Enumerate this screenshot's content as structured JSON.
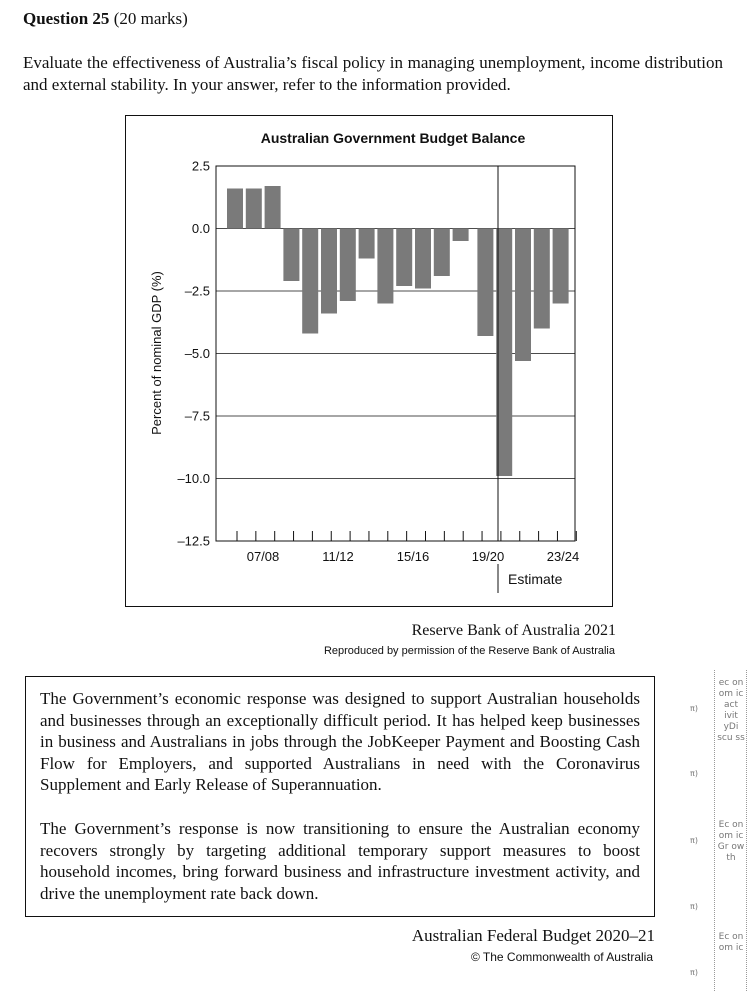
{
  "question": {
    "number_label": "Question 25",
    "marks": "(20 marks)",
    "prompt": "Evaluate the effectiveness of Australia’s fiscal policy in managing unemployment, income distribution and external stability. In your answer, refer to the information provided."
  },
  "chart_data": {
    "type": "bar",
    "title": "Australian Government Budget Balance",
    "ylabel": "Percent of nominal GDP (%)",
    "xlabel": "",
    "ylim": [
      -12.5,
      2.5
    ],
    "yticks": [
      "2.5",
      "0.0",
      "–2.5",
      "–5.0",
      "–7.5",
      "–10.0",
      "–12.5"
    ],
    "ytick_values": [
      2.5,
      0.0,
      -2.5,
      -5.0,
      -7.5,
      -10.0,
      -12.5
    ],
    "xtick_labels": [
      "07/08",
      "11/12",
      "15/16",
      "19/20",
      "23/24"
    ],
    "estimate_label": "Estimate",
    "values": [
      1.6,
      1.6,
      1.7,
      -2.1,
      -4.2,
      -3.4,
      -2.9,
      -1.2,
      -3.0,
      -2.3,
      -2.4,
      -1.9,
      -0.5,
      -4.3,
      -9.9,
      -5.3,
      -4.0,
      -3.0
    ],
    "grid": true
  },
  "sources": {
    "chart_source": "Reserve Bank of Australia 2021",
    "chart_permission": "Reproduced by permission of the Reserve Bank of Australia",
    "quote_source": "Australian Federal Budget 2020–21",
    "quote_copyright": "© The Commonwealth of Australia"
  },
  "quote": {
    "paragraph1": "The Government’s economic response was designed to support Australian households and businesses through an exceptionally difficult period. It has helped keep businesses in business and Australians in jobs through the JobKeeper Payment and Boosting Cash Flow for Employers, and supported Australians in need with the Coronavirus Supplement and Early Release of Superannuation.",
    "paragraph2": "The Government’s response is now transitioning to ensure the Australian economy recovers strongly by targeting additional temporary support measures to boost household incomes, bring forward business and infrastructure investment activity, and drive the unemployment rate back down."
  },
  "margin_notes": {
    "pi_marks": [
      "π)",
      "π)",
      "π)",
      "π)",
      "π)"
    ],
    "note1": "ec on om ic act ivit yDi scu ss",
    "note2": "Ec on om ic Gr ow th",
    "note3": "Ec on om ic"
  }
}
